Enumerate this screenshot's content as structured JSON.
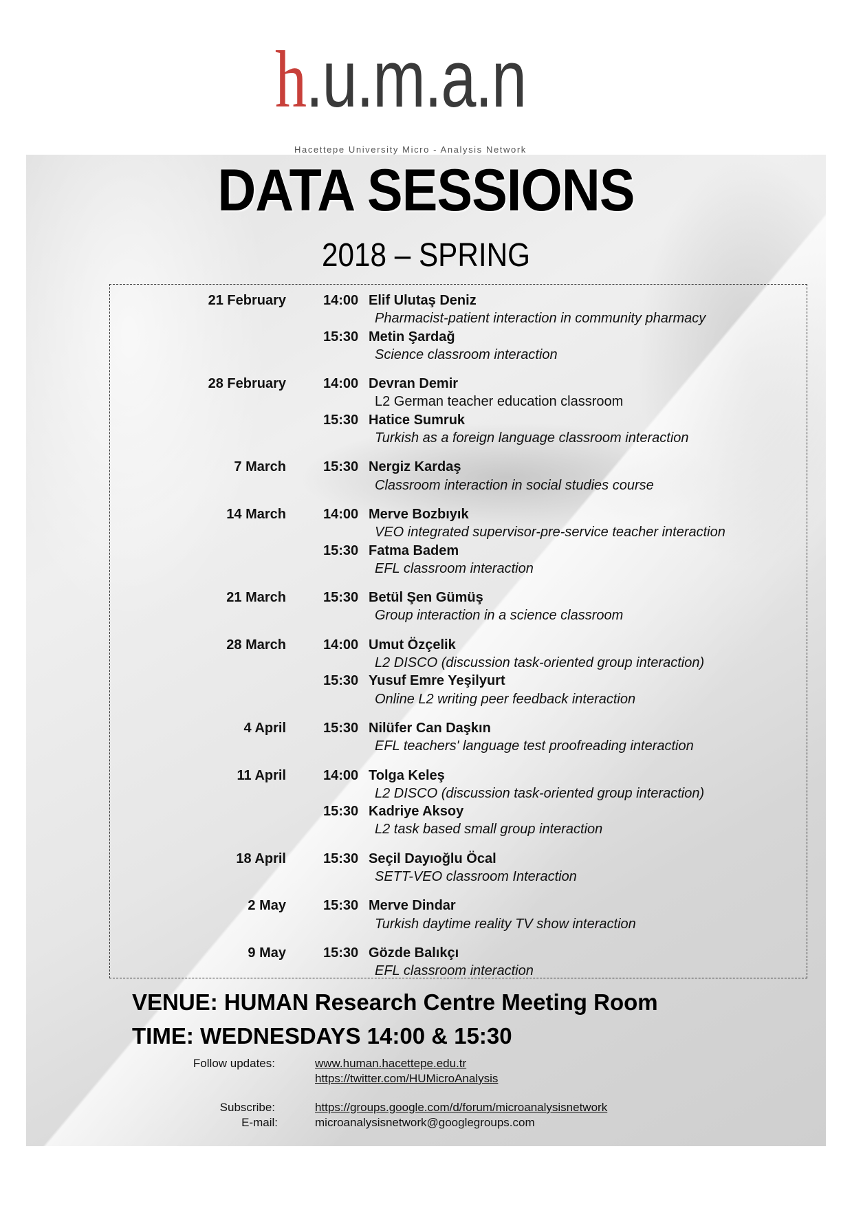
{
  "logo": {
    "letter_h": "h",
    "rest": ".u.m.a.n",
    "tagline": "Hacettepe University Micro - Analysis Network",
    "colors": {
      "h": "#c8403a",
      "text": "#3a3a3a"
    }
  },
  "title": "DATA SESSIONS",
  "subtitle": "2018 – SPRING",
  "sessions": [
    {
      "date": "21 February",
      "talks": [
        {
          "time": "14:00",
          "name": "Elif Ulutaş Deniz",
          "topic": "Pharmacist-patient interaction in community pharmacy",
          "italic": true
        },
        {
          "time": "15:30",
          "name": "Metin Şardağ",
          "topic": "Science classroom interaction",
          "italic": true
        }
      ]
    },
    {
      "date": "28 February",
      "talks": [
        {
          "time": "14:00",
          "name": "Devran Demir",
          "topic": "L2 German teacher education classroom",
          "italic": false
        },
        {
          "time": "15:30",
          "name": "Hatice Sumruk",
          "topic": "Turkish as a foreign language classroom interaction",
          "italic": true
        }
      ]
    },
    {
      "date": "7 March",
      "talks": [
        {
          "time": "15:30",
          "name": "Nergiz Kardaş",
          "topic": "Classroom interaction in social studies course",
          "italic": true
        }
      ]
    },
    {
      "date": "14 March",
      "talks": [
        {
          "time": "14:00",
          "name": "Merve Bozbıyık",
          "topic": "VEO integrated supervisor-pre-service teacher interaction",
          "italic": true
        },
        {
          "time": "15:30",
          "name": "Fatma Badem",
          "topic": "EFL classroom interaction",
          "italic": true
        }
      ]
    },
    {
      "date": "21 March",
      "talks": [
        {
          "time": "15:30",
          "name": "Betül Şen Gümüş",
          "topic": "Group interaction in a science classroom",
          "italic": true
        }
      ]
    },
    {
      "date": "28 March",
      "talks": [
        {
          "time": "14:00",
          "name": "Umut Özçelik",
          "topic": "L2 DISCO (discussion task-oriented group interaction)",
          "italic": true
        },
        {
          "time": "15:30",
          "name": "Yusuf Emre Yeşilyurt",
          "topic": "Online L2 writing peer feedback interaction",
          "italic": true
        }
      ]
    },
    {
      "date": "4 April",
      "talks": [
        {
          "time": "15:30",
          "name": "Nilüfer Can Daşkın",
          "topic": "EFL teachers' language test proofreading interaction",
          "italic": true
        }
      ]
    },
    {
      "date": "11 April",
      "talks": [
        {
          "time": "14:00",
          "name": "Tolga Keleş",
          "topic": "L2 DISCO (discussion task-oriented group interaction)",
          "italic": true
        },
        {
          "time": "15:30",
          "name": "Kadriye Aksoy",
          "topic": "L2 task based small group interaction",
          "italic": true
        }
      ]
    },
    {
      "date": "18 April",
      "talks": [
        {
          "time": "15:30",
          "name": "Seçil Dayıoğlu Öcal",
          "topic": "SETT-VEO classroom Interaction",
          "italic": true
        }
      ]
    },
    {
      "date": "2 May",
      "talks": [
        {
          "time": "15:30",
          "name": "Merve Dindar",
          "topic": "Turkish daytime reality TV show interaction",
          "italic": true
        }
      ]
    },
    {
      "date": "9 May",
      "talks": [
        {
          "time": "15:30",
          "name": "Gözde Balıkçı",
          "topic": "EFL classroom interaction",
          "italic": true
        }
      ]
    }
  ],
  "venue": "VENUE: HUMAN Research Centre Meeting Room",
  "time": "TIME: WEDNESDAYS 14:00 & 15:30",
  "contact": {
    "follow_label": "Follow updates:",
    "website": "www.human.hacettepe.edu.tr",
    "twitter": "https://twitter.com/HUMicroAnalysis",
    "subscribe_label": "Subscribe:",
    "subscribe_link": "https://groups.google.com/d/forum/microanalysisnetwork",
    "email_label": "E-mail:",
    "email": "microanalysisnetwork@googlegroups.com"
  }
}
